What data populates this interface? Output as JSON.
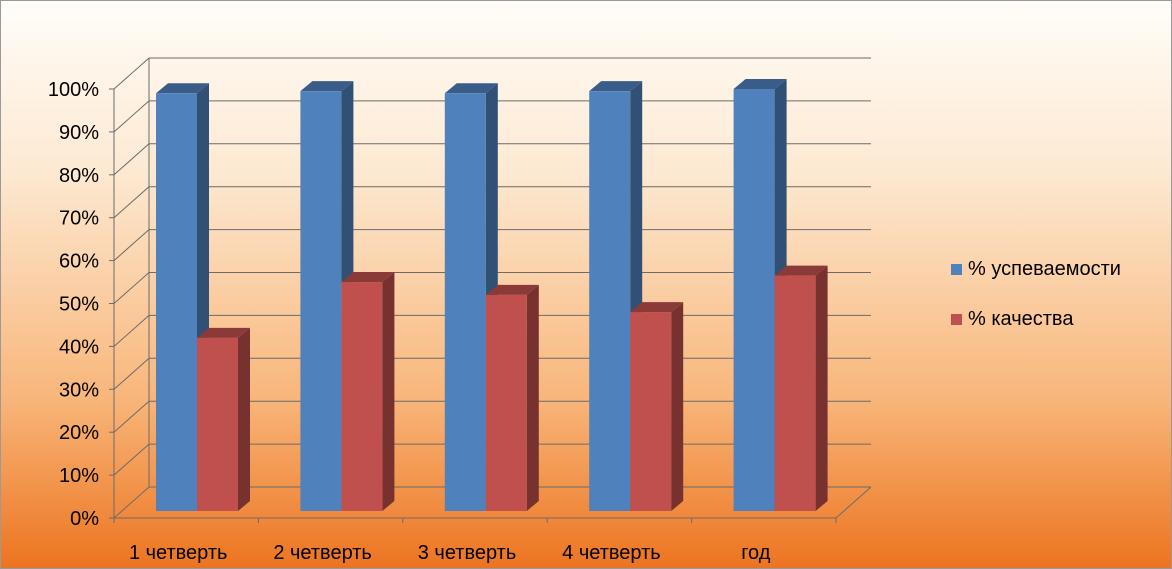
{
  "chart_data": {
    "type": "bar",
    "categories": [
      "1 четверть",
      "2 четверть",
      "3 четверть",
      "4 четверть",
      "год"
    ],
    "series": [
      {
        "name": "% успеваемости",
        "values": [
          99,
          99.5,
          99,
          99.5,
          100
        ],
        "color": "#4f81bd"
      },
      {
        "name": "% качества",
        "values": [
          42,
          55,
          52,
          48,
          56.5
        ],
        "color": "#c0504d"
      }
    ],
    "yticks": [
      "0%",
      "10%",
      "20%",
      "30%",
      "40%",
      "50%",
      "60%",
      "70%",
      "80%",
      "90%",
      "100%"
    ],
    "ylim": [
      0,
      100
    ],
    "grid": true,
    "legend_position": "right",
    "style": "3d-clustered-column"
  }
}
